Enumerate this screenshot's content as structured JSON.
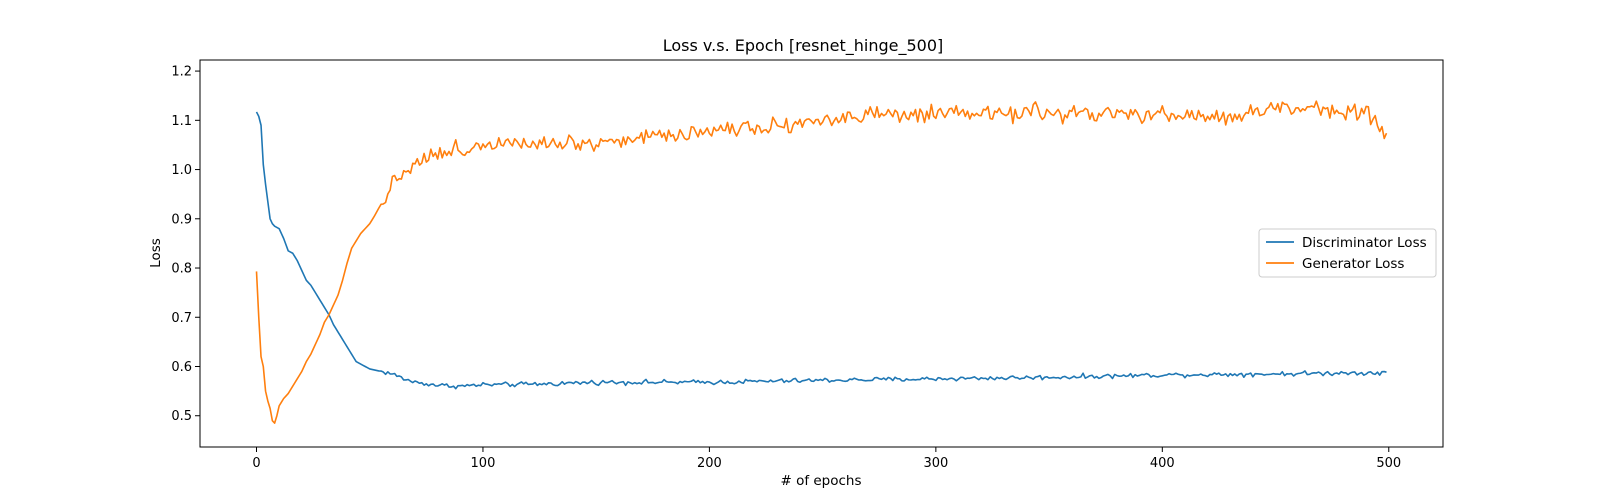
{
  "chart_data": {
    "type": "line",
    "title": "Loss v.s. Epoch [resnet_hinge_500]",
    "xlabel": "# of epochs",
    "ylabel": "Loss",
    "xlim": [
      -24.95,
      523.95
    ],
    "ylim": [
      0.4365,
      1.2225
    ],
    "xticks": [
      0,
      100,
      200,
      300,
      400,
      500
    ],
    "yticks": [
      0.5,
      0.6,
      0.7,
      0.8,
      0.9,
      1.0,
      1.1,
      1.2
    ],
    "grid": false,
    "legend_position": "center-right",
    "n_points": 500,
    "series": [
      {
        "name": "Discriminator Loss",
        "color": "#1f77b4",
        "anchors": [
          [
            0,
            1.117
          ],
          [
            1,
            1.108
          ],
          [
            2,
            1.09
          ],
          [
            3,
            1.01
          ],
          [
            4,
            0.97
          ],
          [
            5,
            0.935
          ],
          [
            6,
            0.9
          ],
          [
            7,
            0.89
          ],
          [
            8,
            0.885
          ],
          [
            10,
            0.88
          ],
          [
            12,
            0.86
          ],
          [
            14,
            0.835
          ],
          [
            16,
            0.83
          ],
          [
            18,
            0.815
          ],
          [
            20,
            0.795
          ],
          [
            22,
            0.775
          ],
          [
            24,
            0.765
          ],
          [
            26,
            0.75
          ],
          [
            28,
            0.735
          ],
          [
            30,
            0.72
          ],
          [
            32,
            0.705
          ],
          [
            34,
            0.685
          ],
          [
            36,
            0.67
          ],
          [
            38,
            0.655
          ],
          [
            40,
            0.64
          ],
          [
            42,
            0.625
          ],
          [
            44,
            0.61
          ],
          [
            46,
            0.605
          ],
          [
            48,
            0.6
          ],
          [
            50,
            0.595
          ],
          [
            55,
            0.59
          ],
          [
            60,
            0.585
          ],
          [
            65,
            0.575
          ],
          [
            70,
            0.568
          ],
          [
            80,
            0.562
          ],
          [
            90,
            0.56
          ],
          [
            100,
            0.563
          ],
          [
            110,
            0.563
          ],
          [
            130,
            0.565
          ],
          [
            150,
            0.568
          ],
          [
            180,
            0.568
          ],
          [
            200,
            0.568
          ],
          [
            250,
            0.572
          ],
          [
            300,
            0.575
          ],
          [
            350,
            0.578
          ],
          [
            400,
            0.583
          ],
          [
            450,
            0.585
          ],
          [
            499,
            0.588
          ]
        ],
        "noise_amp": 0.007,
        "noise_start": 55
      },
      {
        "name": "Generator Loss",
        "color": "#ff7f0e",
        "anchors": [
          [
            0,
            0.793
          ],
          [
            1,
            0.7
          ],
          [
            2,
            0.62
          ],
          [
            3,
            0.6
          ],
          [
            4,
            0.55
          ],
          [
            5,
            0.53
          ],
          [
            6,
            0.515
          ],
          [
            7,
            0.49
          ],
          [
            8,
            0.485
          ],
          [
            9,
            0.5
          ],
          [
            10,
            0.52
          ],
          [
            12,
            0.535
          ],
          [
            14,
            0.545
          ],
          [
            16,
            0.56
          ],
          [
            18,
            0.575
          ],
          [
            20,
            0.59
          ],
          [
            22,
            0.61
          ],
          [
            24,
            0.625
          ],
          [
            26,
            0.645
          ],
          [
            28,
            0.665
          ],
          [
            30,
            0.69
          ],
          [
            32,
            0.705
          ],
          [
            34,
            0.725
          ],
          [
            36,
            0.745
          ],
          [
            38,
            0.775
          ],
          [
            40,
            0.81
          ],
          [
            42,
            0.84
          ],
          [
            44,
            0.855
          ],
          [
            46,
            0.87
          ],
          [
            48,
            0.88
          ],
          [
            50,
            0.89
          ],
          [
            52,
            0.905
          ],
          [
            55,
            0.93
          ],
          [
            58,
            0.955
          ],
          [
            62,
            0.985
          ],
          [
            66,
            1.0
          ],
          [
            70,
            1.015
          ],
          [
            75,
            1.025
          ],
          [
            80,
            1.03
          ],
          [
            90,
            1.04
          ],
          [
            100,
            1.05
          ],
          [
            110,
            1.06
          ],
          [
            130,
            1.055
          ],
          [
            150,
            1.055
          ],
          [
            170,
            1.065
          ],
          [
            190,
            1.075
          ],
          [
            210,
            1.085
          ],
          [
            230,
            1.09
          ],
          [
            250,
            1.1
          ],
          [
            270,
            1.11
          ],
          [
            290,
            1.11
          ],
          [
            310,
            1.11
          ],
          [
            330,
            1.115
          ],
          [
            350,
            1.115
          ],
          [
            370,
            1.112
          ],
          [
            390,
            1.11
          ],
          [
            410,
            1.11
          ],
          [
            430,
            1.105
          ],
          [
            450,
            1.125
          ],
          [
            470,
            1.125
          ],
          [
            490,
            1.115
          ],
          [
            499,
            1.082
          ]
        ],
        "noise_amp": 0.026,
        "noise_start": 55
      }
    ]
  }
}
